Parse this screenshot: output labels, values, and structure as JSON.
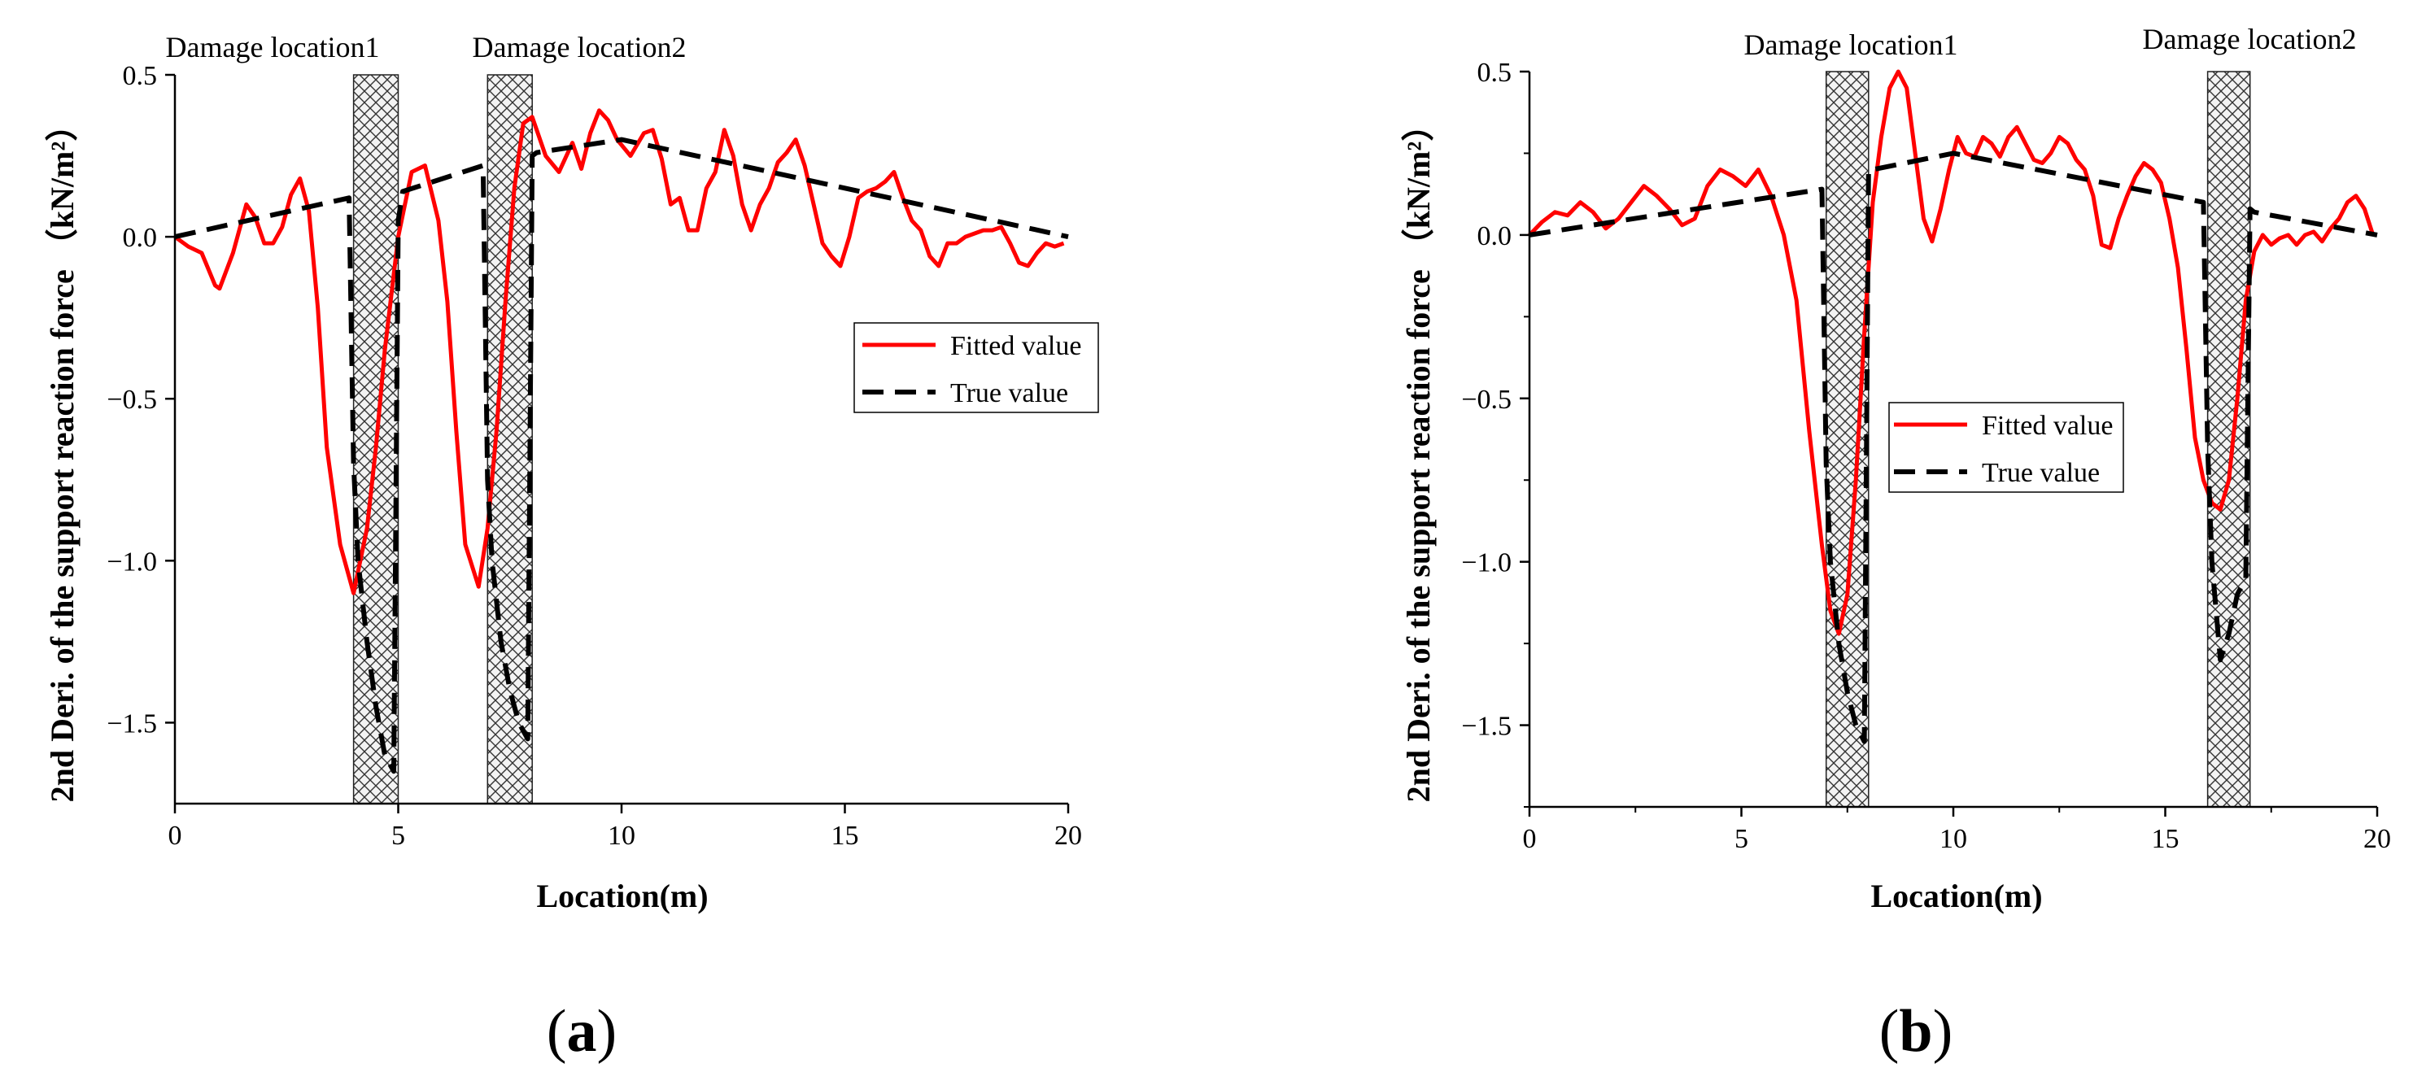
{
  "chart_data": [
    {
      "type": "line",
      "panel": "(a)",
      "xlabel": "Location(m)",
      "ylabel": "2nd Deri. of the support reaction force （kN/m²）",
      "xlim": [
        0,
        20
      ],
      "ylim": [
        -1.75,
        0.5
      ],
      "xticks": [
        "0",
        "5",
        "10",
        "15",
        "20"
      ],
      "yticks": [
        "0.5",
        "0.0",
        "−0.5",
        "−1.0",
        "−1.5"
      ],
      "damage_zones": [
        {
          "label": "Damage location1",
          "x0": 4.0,
          "x1": 5.0
        },
        {
          "label": "Damage location2",
          "x0": 7.0,
          "x1": 8.0
        }
      ],
      "legend_position": "right",
      "series": [
        {
          "name": "Fitted value",
          "color": "#ff0000",
          "style": "solid",
          "x": [
            0,
            0.3,
            0.6,
            0.9,
            1.0,
            1.3,
            1.6,
            1.8,
            2.0,
            2.2,
            2.4,
            2.6,
            2.8,
            3.0,
            3.2,
            3.4,
            3.7,
            4.0,
            4.3,
            4.5,
            4.7,
            5.0,
            5.3,
            5.6,
            5.9,
            6.1,
            6.3,
            6.5,
            6.8,
            7.0,
            7.2,
            7.4,
            7.6,
            7.8,
            8.0,
            8.3,
            8.6,
            8.9,
            9.1,
            9.3,
            9.5,
            9.7,
            9.9,
            10.2,
            10.5,
            10.7,
            10.9,
            11.1,
            11.3,
            11.5,
            11.7,
            11.9,
            12.1,
            12.3,
            12.5,
            12.7,
            12.9,
            13.1,
            13.3,
            13.5,
            13.7,
            13.9,
            14.1,
            14.3,
            14.5,
            14.7,
            14.9,
            15.1,
            15.3,
            15.5,
            15.7,
            15.9,
            16.1,
            16.3,
            16.5,
            16.7,
            16.9,
            17.1,
            17.3,
            17.5,
            17.7,
            17.9,
            18.1,
            18.3,
            18.5,
            18.7,
            18.9,
            19.1,
            19.3,
            19.5,
            19.7,
            19.9
          ],
          "y": [
            0.0,
            -0.03,
            -0.05,
            -0.15,
            -0.16,
            -0.05,
            0.1,
            0.06,
            -0.02,
            -0.02,
            0.03,
            0.13,
            0.18,
            0.08,
            -0.22,
            -0.65,
            -0.95,
            -1.1,
            -0.9,
            -0.65,
            -0.35,
            0.0,
            0.2,
            0.22,
            0.05,
            -0.2,
            -0.6,
            -0.95,
            -1.08,
            -0.9,
            -0.6,
            -0.2,
            0.15,
            0.35,
            0.37,
            0.25,
            0.2,
            0.29,
            0.21,
            0.32,
            0.39,
            0.36,
            0.3,
            0.25,
            0.32,
            0.33,
            0.24,
            0.1,
            0.12,
            0.02,
            0.02,
            0.15,
            0.2,
            0.33,
            0.25,
            0.1,
            0.02,
            0.1,
            0.15,
            0.23,
            0.26,
            0.3,
            0.22,
            0.1,
            -0.02,
            -0.06,
            -0.09,
            0.0,
            0.12,
            0.14,
            0.15,
            0.17,
            0.2,
            0.12,
            0.05,
            0.02,
            -0.06,
            -0.09,
            -0.02,
            -0.02,
            0.0,
            0.01,
            0.02,
            0.02,
            0.03,
            -0.02,
            -0.08,
            -0.09,
            -0.05,
            -0.02,
            -0.03,
            -0.02
          ]
        },
        {
          "name": "True value",
          "color": "#000000",
          "style": "dashed",
          "x": [
            0,
            3.9,
            4.0,
            4.1,
            4.3,
            4.5,
            4.7,
            4.9,
            5.0,
            5.1,
            6.9,
            7.0,
            7.1,
            7.3,
            7.5,
            7.7,
            7.9,
            8.0,
            8.1,
            10.0,
            20.0
          ],
          "y": [
            0.0,
            0.12,
            -0.7,
            -1.0,
            -1.25,
            -1.45,
            -1.6,
            -1.65,
            0.05,
            0.14,
            0.22,
            -0.75,
            -1.0,
            -1.25,
            -1.4,
            -1.5,
            -1.55,
            0.25,
            0.26,
            0.3,
            0.0
          ]
        }
      ]
    },
    {
      "type": "line",
      "panel": "(b)",
      "xlabel": "Location(m)",
      "ylabel": "2nd Deri. of the support reaction force （kN/m²）",
      "xlim": [
        0,
        20
      ],
      "ylim": [
        -1.75,
        0.5
      ],
      "xticks": [
        "0",
        "5",
        "10",
        "15",
        "20"
      ],
      "yticks": [
        "0.5",
        "0.0",
        "−0.5",
        "−1.0",
        "−1.5"
      ],
      "damage_zones": [
        {
          "label": "Damage location1",
          "x0": 7.0,
          "x1": 8.0
        },
        {
          "label": "Damage location2",
          "x0": 16.0,
          "x1": 17.0
        }
      ],
      "legend_position": "center-right",
      "series": [
        {
          "name": "Fitted value",
          "color": "#ff0000",
          "style": "solid",
          "x": [
            0,
            0.3,
            0.6,
            0.9,
            1.2,
            1.5,
            1.8,
            2.1,
            2.4,
            2.7,
            3.0,
            3.3,
            3.6,
            3.9,
            4.2,
            4.5,
            4.8,
            5.1,
            5.4,
            5.7,
            6.0,
            6.3,
            6.6,
            6.9,
            7.1,
            7.3,
            7.5,
            7.7,
            7.9,
            8.1,
            8.3,
            8.5,
            8.7,
            8.9,
            9.1,
            9.3,
            9.5,
            9.7,
            9.9,
            10.1,
            10.3,
            10.5,
            10.7,
            10.9,
            11.1,
            11.3,
            11.5,
            11.7,
            11.9,
            12.1,
            12.3,
            12.5,
            12.7,
            12.9,
            13.1,
            13.3,
            13.5,
            13.7,
            13.9,
            14.1,
            14.3,
            14.5,
            14.7,
            14.9,
            15.1,
            15.3,
            15.5,
            15.7,
            15.9,
            16.1,
            16.3,
            16.5,
            16.7,
            16.9,
            17.1,
            17.3,
            17.5,
            17.7,
            17.9,
            18.1,
            18.3,
            18.5,
            18.7,
            18.9,
            19.1,
            19.3,
            19.5,
            19.7,
            19.9
          ],
          "y": [
            0.0,
            0.04,
            0.07,
            0.06,
            0.1,
            0.07,
            0.02,
            0.05,
            0.1,
            0.15,
            0.12,
            0.08,
            0.03,
            0.05,
            0.15,
            0.2,
            0.18,
            0.15,
            0.2,
            0.12,
            0.0,
            -0.2,
            -0.6,
            -0.95,
            -1.15,
            -1.22,
            -1.1,
            -0.75,
            -0.3,
            0.1,
            0.3,
            0.45,
            0.5,
            0.45,
            0.25,
            0.05,
            -0.02,
            0.08,
            0.2,
            0.3,
            0.25,
            0.24,
            0.3,
            0.28,
            0.24,
            0.3,
            0.33,
            0.28,
            0.23,
            0.22,
            0.25,
            0.3,
            0.28,
            0.23,
            0.2,
            0.12,
            -0.03,
            -0.04,
            0.05,
            0.12,
            0.18,
            0.22,
            0.2,
            0.16,
            0.05,
            -0.1,
            -0.35,
            -0.62,
            -0.75,
            -0.82,
            -0.84,
            -0.75,
            -0.5,
            -0.2,
            -0.05,
            0.0,
            -0.03,
            -0.01,
            0.0,
            -0.03,
            0.0,
            0.01,
            -0.02,
            0.02,
            0.05,
            0.1,
            0.12,
            0.08,
            0.0
          ]
        },
        {
          "name": "True value",
          "color": "#000000",
          "style": "dashed",
          "x": [
            0,
            6.9,
            7.0,
            7.1,
            7.3,
            7.5,
            7.7,
            7.9,
            8.0,
            8.1,
            10.0,
            15.9,
            16.0,
            16.1,
            16.3,
            16.5,
            16.7,
            16.9,
            17.0,
            17.1,
            20.0
          ],
          "y": [
            0.0,
            0.14,
            -0.7,
            -1.0,
            -1.25,
            -1.4,
            -1.5,
            -1.55,
            0.2,
            0.2,
            0.25,
            0.1,
            -0.65,
            -1.0,
            -1.3,
            -1.22,
            -1.1,
            -1.05,
            0.08,
            0.07,
            0.0
          ]
        }
      ]
    }
  ]
}
